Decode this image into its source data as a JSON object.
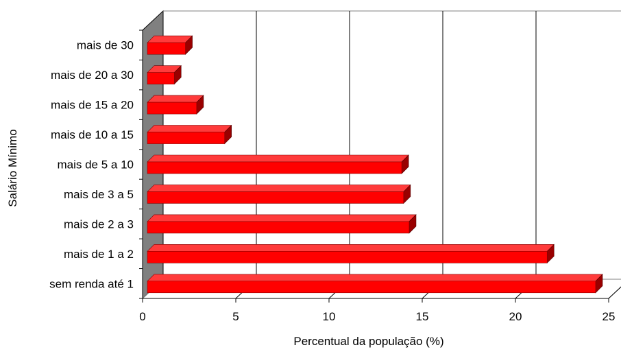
{
  "chart_data": {
    "type": "bar",
    "orientation": "horizontal",
    "style": "3d",
    "title": "",
    "xlabel": "Percentual da população (%)",
    "ylabel": "Salário Mínimo",
    "categories": [
      "mais de 30",
      "mais de 20 a 30",
      "mais de 15 a 20",
      "mais de 10 a 15",
      "mais de 5 a 10",
      "mais de 3 a 5",
      "mais de 2 a 3",
      "mais de 1 a 2",
      "sem renda até 1"
    ],
    "values": [
      2.3,
      1.7,
      2.9,
      4.4,
      13.9,
      14.0,
      14.3,
      21.7,
      24.3
    ],
    "xlim": [
      0,
      25
    ],
    "xticks": [
      "0",
      "5",
      "10",
      "15",
      "20",
      "25"
    ],
    "grid": true,
    "legend": "none",
    "colors": {
      "bar_front": "#ff0000",
      "bar_top": "#ff3b3b",
      "bar_side": "#990000",
      "wall": "#808080",
      "grid": "#000000"
    }
  }
}
